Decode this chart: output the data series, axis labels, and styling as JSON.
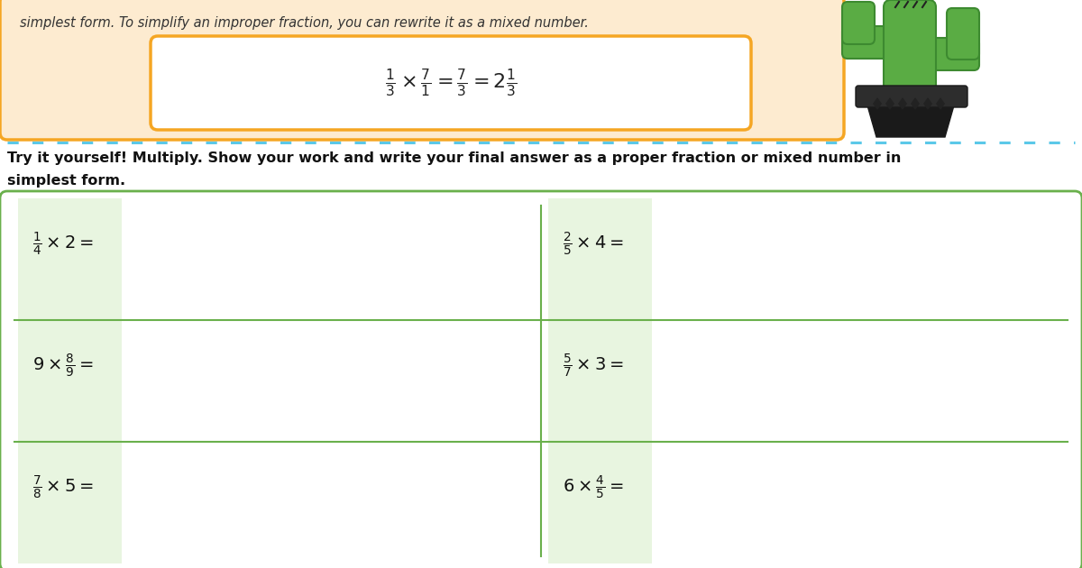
{
  "bg_color": "#ffffff",
  "top_box_color": "#fdebd0",
  "top_box_border": "#f5a623",
  "inner_box_color": "#ffffff",
  "inner_box_border": "#f5a623",
  "dotted_line_color": "#5bc8e8",
  "instruction_text_line1": "Try it yourself! Multiply. Show your work and write your final answer as a proper fraction or mixed number in",
  "instruction_text_line2": "simplest form.",
  "top_text": "simplest form. To simplify an improper fraction, you can rewrite it as a mixed number.",
  "example_formula": "$\\frac{1}{3} \\times \\frac{7}{1} = \\frac{7}{3} = 2\\frac{1}{3}$",
  "grid_border": "#6ab04c",
  "grid_bg": "#ffffff",
  "shaded_col_color": "#e8f5e0",
  "problems": [
    {
      "label": "$\\frac{1}{4} \\times 2 =$",
      "col": 0,
      "row": 0
    },
    {
      "label": "$\\frac{2}{5} \\times 4 =$",
      "col": 1,
      "row": 0
    },
    {
      "label": "$9 \\times \\frac{8}{9} =$",
      "col": 0,
      "row": 1
    },
    {
      "label": "$\\frac{5}{7} \\times 3 =$",
      "col": 1,
      "row": 1
    },
    {
      "label": "$\\frac{7}{8} \\times 5 =$",
      "col": 0,
      "row": 2
    },
    {
      "label": "$6 \\times \\frac{4}{5} =$",
      "col": 1,
      "row": 2
    }
  ],
  "font_size_instruction": 11.5,
  "font_size_problem": 14,
  "font_size_example": 16,
  "font_size_top_text": 10.5,
  "cactus_green": "#5aac44",
  "cactus_dark_green": "#3d8a30",
  "cactus_pot_dark": "#1a1a1a",
  "cactus_pot_rim": "#2d2d2d",
  "cactus_spines": "#222222"
}
